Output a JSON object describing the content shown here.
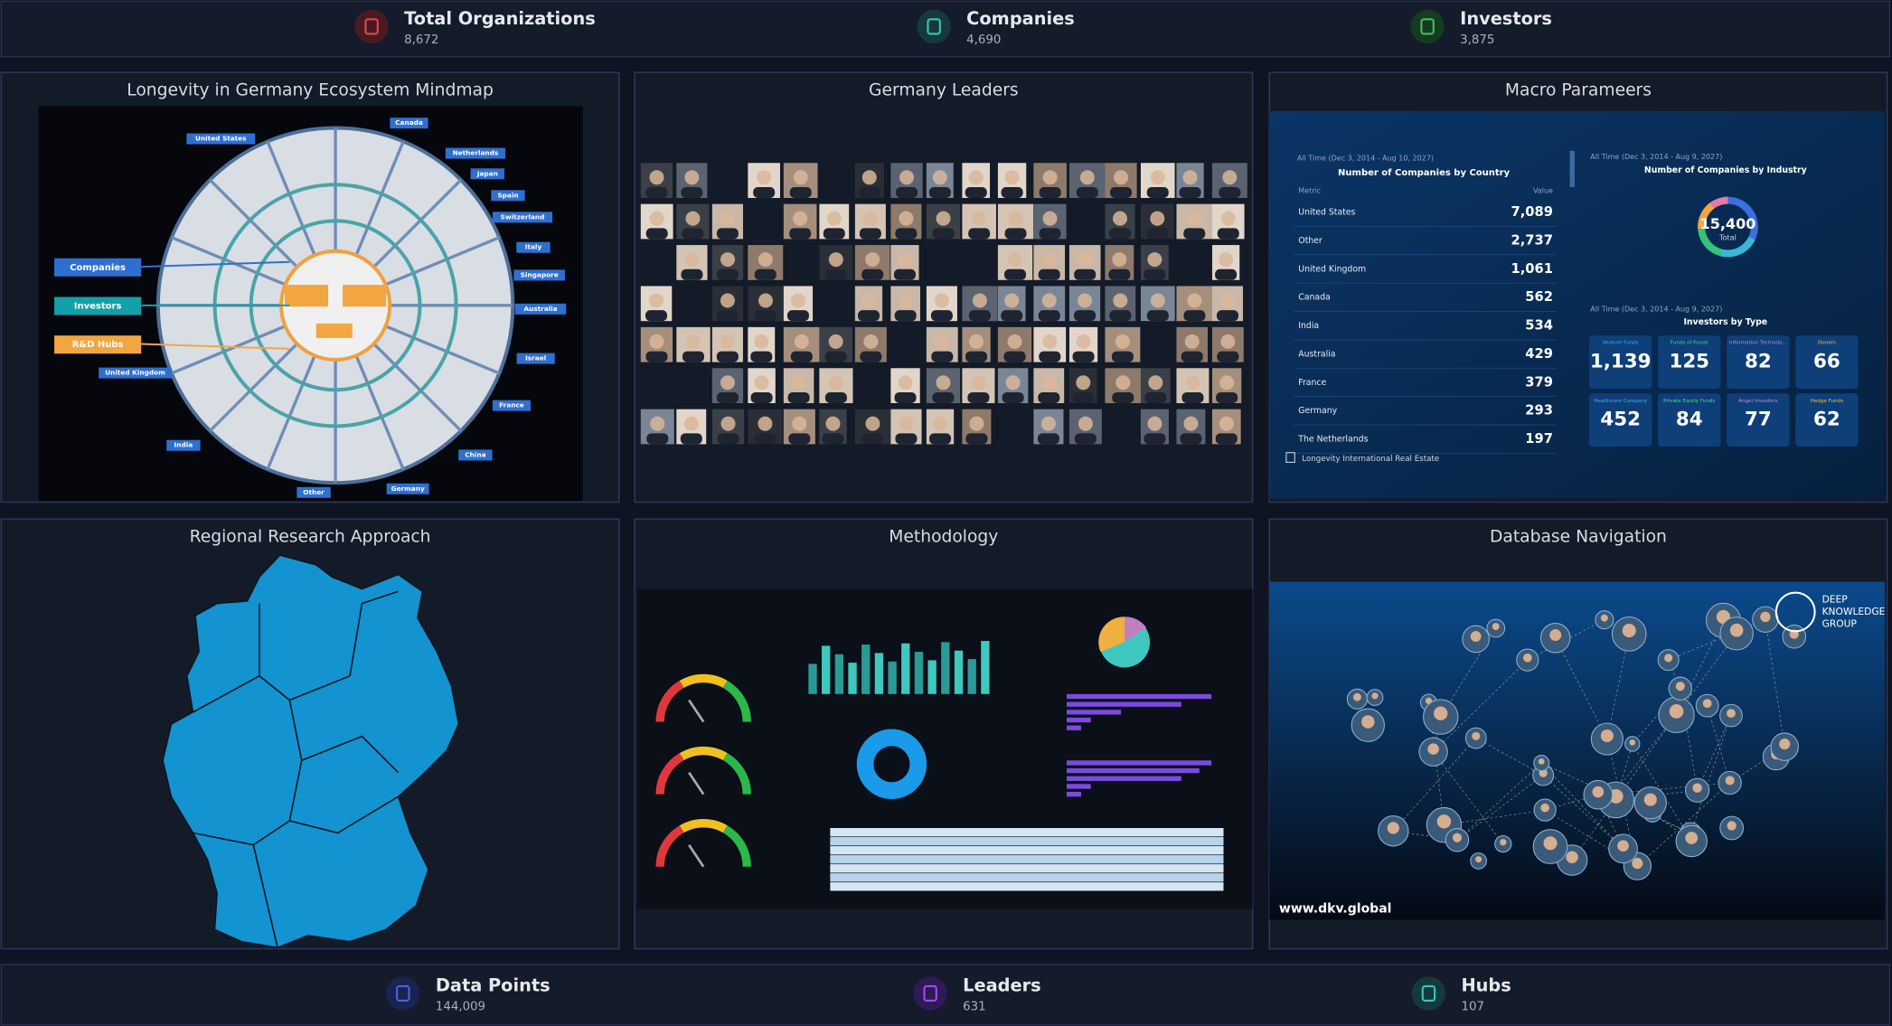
{
  "top_stats": [
    {
      "label": "Total Organizations",
      "value": "8,672"
    },
    {
      "label": "Companies",
      "value": "4,690"
    },
    {
      "label": "Investors",
      "value": "3,875"
    }
  ],
  "panels": [
    {
      "title": "Longevity in Germany Ecosystem Mindmap"
    },
    {
      "title": "Germany Leaders"
    },
    {
      "title": "Macro Parameers"
    },
    {
      "title": "Regional Research Approach"
    },
    {
      "title": "Methodology"
    },
    {
      "title": "Database Navigation"
    }
  ],
  "mindmap": {
    "countries": [
      "United States",
      "Canada",
      "Netherlands",
      "Japan",
      "Spain",
      "Switzerland",
      "Italy",
      "Singapore",
      "Australia",
      "Israel",
      "France",
      "China",
      "Germany",
      "Other",
      "India",
      "United Kingdom"
    ],
    "legend": [
      "Companies",
      "Investors",
      "R&D Hubs"
    ]
  },
  "macro": {
    "left_header": "All Time (Dec 3, 2014 - Aug 10, 2027)",
    "left_title": "Number of Companies by Country",
    "col_metric": "Metric",
    "col_value": "Value",
    "rows": [
      [
        "United States",
        "7,089"
      ],
      [
        "Other",
        "2,737"
      ],
      [
        "United Kingdom",
        "1,061"
      ],
      [
        "Canada",
        "562"
      ],
      [
        "India",
        "534"
      ],
      [
        "Australia",
        "429"
      ],
      [
        "France",
        "379"
      ],
      [
        "Germany",
        "293"
      ],
      [
        "The Netherlands",
        "197"
      ]
    ],
    "footer": "Longevity International Real Estate",
    "right_header": "All Time (Dec 3, 2014 - Aug 9, 2027)",
    "right_title": "Number of Companies by Industry",
    "donut_value": "15,400",
    "donut_label": "Total",
    "investors_header": "All Time (Dec 3, 2014 - Aug 9, 2027)",
    "investors_title": "Investors by Type",
    "investors": [
      [
        "Venture Funds",
        "1,139"
      ],
      [
        "Funds of Funds",
        "125"
      ],
      [
        "Information Technolo...",
        "82"
      ],
      [
        "Donors",
        "66"
      ],
      [
        "Healthcare Company",
        "452"
      ],
      [
        "Private Equity Funds",
        "84"
      ],
      [
        "Angel Investors",
        "77"
      ],
      [
        "Hedge Funds",
        "62"
      ]
    ]
  },
  "database": {
    "url": "www.dkv.global",
    "brand": [
      "DEEP",
      "KNOWLEDGE",
      "GROUP"
    ]
  },
  "bottom_stats": [
    {
      "label": "Data Points",
      "value": "144,009"
    },
    {
      "label": "Leaders",
      "value": "631"
    },
    {
      "label": "Hubs",
      "value": "107"
    }
  ]
}
